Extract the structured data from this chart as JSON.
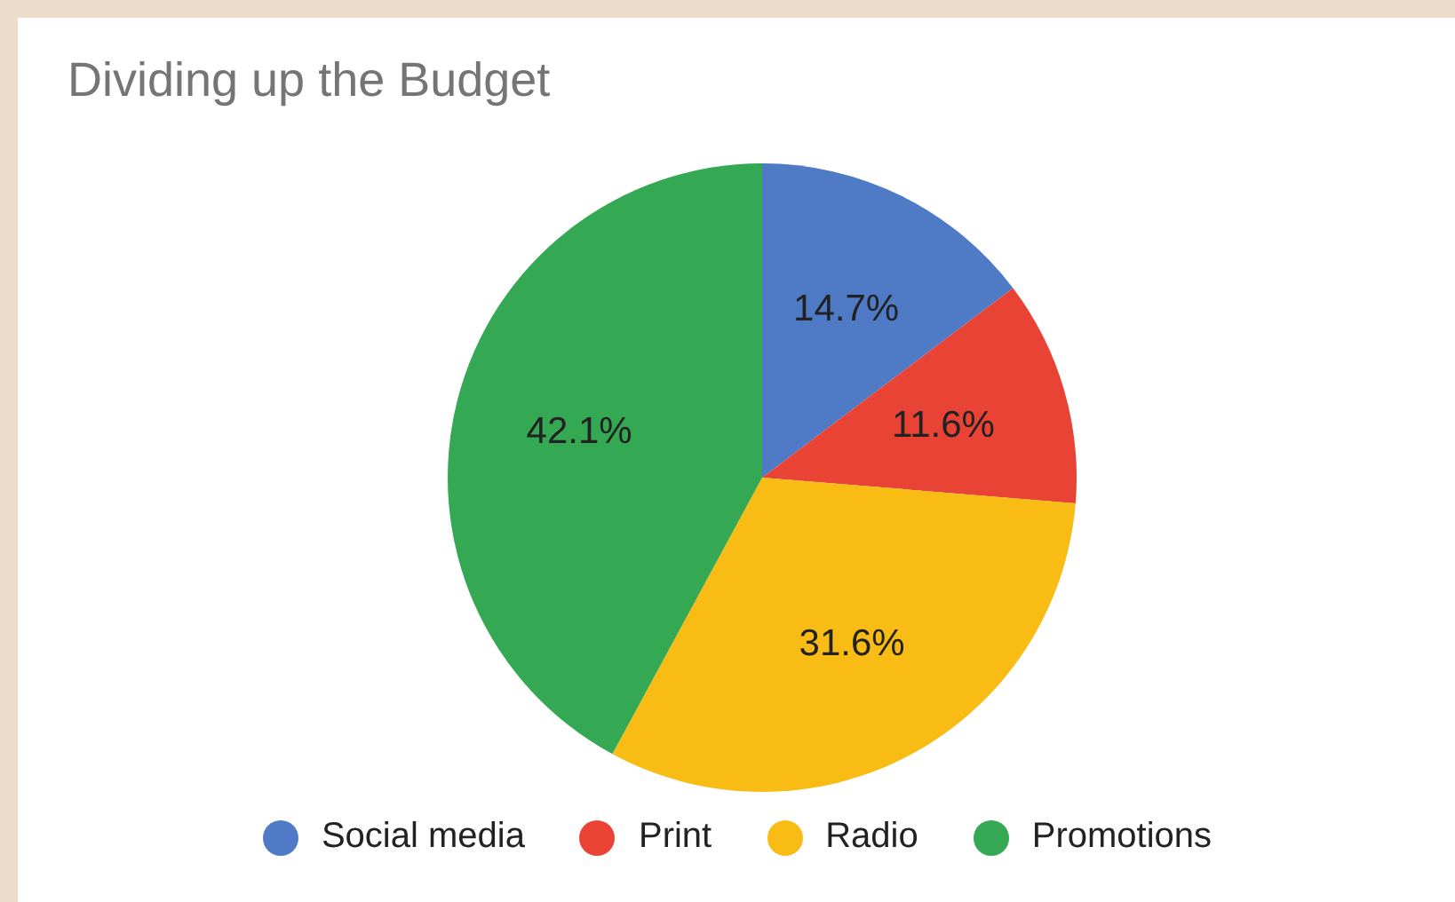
{
  "chart_data": {
    "type": "pie",
    "title": "Dividing up the Budget",
    "categories": [
      "Social media",
      "Print",
      "Radio",
      "Promotions"
    ],
    "values": [
      14.7,
      11.6,
      31.6,
      42.1
    ],
    "colors": [
      "#4f7bc6",
      "#e94335",
      "#f9bc15",
      "#34a853"
    ],
    "value_labels": [
      "14.7%",
      "11.6%",
      "31.6%",
      "42.1%"
    ],
    "legend": "bottom"
  }
}
